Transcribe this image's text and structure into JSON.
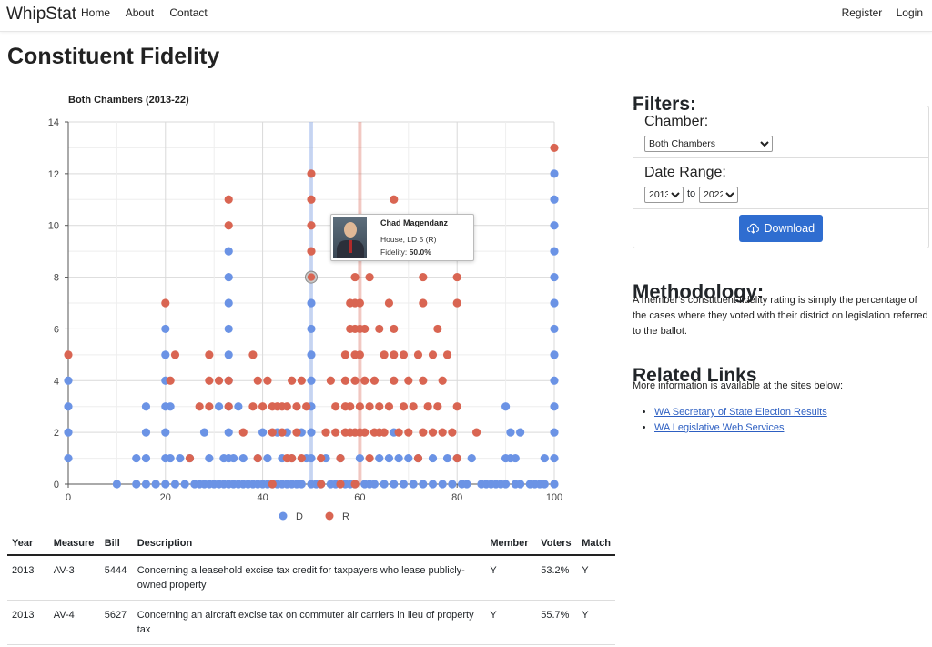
{
  "nav": {
    "brand": "WhipStat",
    "home": "Home",
    "about": "About",
    "contact": "Contact",
    "register": "Register",
    "login": "Login"
  },
  "page_title": "Constituent Fidelity",
  "tooltip": {
    "name": "Chad Magendanz",
    "district": "House, LD 5 (R)",
    "fidelity_label": "Fidelity:",
    "fidelity_value": "50.0%"
  },
  "chart_data": {
    "type": "scatter",
    "title": "Both Chambers (2013-22)",
    "xlabel": "",
    "ylabel": "",
    "xlim": [
      0,
      100
    ],
    "ylim": [
      0,
      14
    ],
    "xticks": [
      "0",
      "20",
      "40",
      "60",
      "80",
      "100"
    ],
    "yticks": [
      "0",
      "2",
      "4",
      "6",
      "8",
      "10",
      "12",
      "14"
    ],
    "grid": true,
    "legend_position": "bottom",
    "mean_lines": [
      {
        "series": "D",
        "x": 50
      },
      {
        "series": "R",
        "x": 60
      }
    ],
    "highlight": {
      "x": 50,
      "y": 8
    },
    "series": [
      {
        "name": "D",
        "color": "#6b93e5",
        "points": [
          [
            0,
            1
          ],
          [
            0,
            2
          ],
          [
            0,
            3
          ],
          [
            0,
            4
          ],
          [
            10,
            0
          ],
          [
            14,
            0
          ],
          [
            14,
            1
          ],
          [
            16,
            0
          ],
          [
            16,
            1
          ],
          [
            16,
            2
          ],
          [
            16,
            3
          ],
          [
            18,
            0
          ],
          [
            20,
            0
          ],
          [
            20,
            1
          ],
          [
            20,
            2
          ],
          [
            20,
            3
          ],
          [
            20,
            4
          ],
          [
            20,
            5
          ],
          [
            20,
            6
          ],
          [
            21,
            1
          ],
          [
            21,
            3
          ],
          [
            22,
            0
          ],
          [
            23,
            1
          ],
          [
            24,
            0
          ],
          [
            25,
            1
          ],
          [
            26,
            0
          ],
          [
            27,
            0
          ],
          [
            28,
            0
          ],
          [
            28,
            2
          ],
          [
            29,
            0
          ],
          [
            29,
            1
          ],
          [
            30,
            0
          ],
          [
            31,
            0
          ],
          [
            31,
            3
          ],
          [
            32,
            0
          ],
          [
            32,
            1
          ],
          [
            33,
            0
          ],
          [
            33,
            1
          ],
          [
            33,
            2
          ],
          [
            33,
            3
          ],
          [
            33,
            4
          ],
          [
            33,
            5
          ],
          [
            33,
            6
          ],
          [
            33,
            7
          ],
          [
            33,
            8
          ],
          [
            33,
            9
          ],
          [
            34,
            0
          ],
          [
            34,
            1
          ],
          [
            35,
            0
          ],
          [
            35,
            3
          ],
          [
            36,
            0
          ],
          [
            36,
            1
          ],
          [
            37,
            0
          ],
          [
            38,
            0
          ],
          [
            39,
            0
          ],
          [
            39,
            1
          ],
          [
            40,
            0
          ],
          [
            40,
            2
          ],
          [
            41,
            0
          ],
          [
            41,
            1
          ],
          [
            42,
            0
          ],
          [
            43,
            0
          ],
          [
            43,
            2
          ],
          [
            44,
            0
          ],
          [
            44,
            1
          ],
          [
            45,
            0
          ],
          [
            45,
            2
          ],
          [
            46,
            0
          ],
          [
            46,
            1
          ],
          [
            47,
            0
          ],
          [
            48,
            0
          ],
          [
            48,
            2
          ],
          [
            49,
            1
          ],
          [
            50,
            0
          ],
          [
            50,
            1
          ],
          [
            50,
            2
          ],
          [
            50,
            3
          ],
          [
            50,
            4
          ],
          [
            50,
            5
          ],
          [
            50,
            6
          ],
          [
            50,
            7
          ],
          [
            51,
            0
          ],
          [
            52,
            0
          ],
          [
            53,
            1
          ],
          [
            54,
            0
          ],
          [
            55,
            0
          ],
          [
            56,
            1
          ],
          [
            57,
            0
          ],
          [
            58,
            0
          ],
          [
            59,
            0
          ],
          [
            60,
            1
          ],
          [
            61,
            0
          ],
          [
            62,
            0
          ],
          [
            63,
            0
          ],
          [
            64,
            1
          ],
          [
            65,
            0
          ],
          [
            66,
            1
          ],
          [
            67,
            0
          ],
          [
            67,
            2
          ],
          [
            68,
            1
          ],
          [
            69,
            0
          ],
          [
            70,
            1
          ],
          [
            71,
            0
          ],
          [
            72,
            1
          ],
          [
            73,
            0
          ],
          [
            75,
            1
          ],
          [
            75,
            0
          ],
          [
            77,
            0
          ],
          [
            78,
            1
          ],
          [
            79,
            0
          ],
          [
            80,
            1
          ],
          [
            81,
            0
          ],
          [
            82,
            0
          ],
          [
            83,
            1
          ],
          [
            85,
            0
          ],
          [
            86,
            0
          ],
          [
            87,
            0
          ],
          [
            88,
            0
          ],
          [
            89,
            0
          ],
          [
            90,
            1
          ],
          [
            90,
            0
          ],
          [
            91,
            1
          ],
          [
            91,
            2
          ],
          [
            92,
            0
          ],
          [
            92,
            1
          ],
          [
            93,
            0
          ],
          [
            93,
            2
          ],
          [
            96,
            0
          ],
          [
            97,
            0
          ],
          [
            98,
            0
          ],
          [
            98,
            1
          ],
          [
            100,
            0
          ],
          [
            100,
            1
          ],
          [
            100,
            2
          ],
          [
            100,
            3
          ],
          [
            100,
            4
          ],
          [
            100,
            5
          ],
          [
            100,
            6
          ],
          [
            100,
            7
          ],
          [
            100,
            8
          ],
          [
            100,
            9
          ],
          [
            100,
            10
          ],
          [
            100,
            11
          ],
          [
            100,
            12
          ],
          [
            90,
            3
          ],
          [
            95,
            0
          ]
        ]
      },
      {
        "name": "R",
        "color": "#d96552",
        "points": [
          [
            0,
            5
          ],
          [
            20,
            7
          ],
          [
            21,
            4
          ],
          [
            22,
            5
          ],
          [
            25,
            1
          ],
          [
            27,
            3
          ],
          [
            29,
            4
          ],
          [
            29,
            5
          ],
          [
            31,
            4
          ],
          [
            33,
            3
          ],
          [
            33,
            4
          ],
          [
            33,
            10
          ],
          [
            33,
            11
          ],
          [
            36,
            2
          ],
          [
            38,
            3
          ],
          [
            38,
            5
          ],
          [
            39,
            4
          ],
          [
            40,
            3
          ],
          [
            41,
            4
          ],
          [
            42,
            3
          ],
          [
            42,
            2
          ],
          [
            43,
            3
          ],
          [
            44,
            2
          ],
          [
            44,
            3
          ],
          [
            45,
            1
          ],
          [
            45,
            3
          ],
          [
            46,
            4
          ],
          [
            46,
            1
          ],
          [
            47,
            2
          ],
          [
            47,
            3
          ],
          [
            48,
            1
          ],
          [
            48,
            4
          ],
          [
            49,
            3
          ],
          [
            50,
            8
          ],
          [
            50,
            9
          ],
          [
            50,
            10
          ],
          [
            50,
            11
          ],
          [
            50,
            12
          ],
          [
            52,
            1
          ],
          [
            53,
            2
          ],
          [
            54,
            4
          ],
          [
            55,
            2
          ],
          [
            55,
            3
          ],
          [
            56,
            1
          ],
          [
            57,
            2
          ],
          [
            57,
            3
          ],
          [
            57,
            4
          ],
          [
            57,
            5
          ],
          [
            58,
            2
          ],
          [
            58,
            3
          ],
          [
            58,
            6
          ],
          [
            58,
            7
          ],
          [
            59,
            2
          ],
          [
            59,
            4
          ],
          [
            59,
            5
          ],
          [
            59,
            6
          ],
          [
            59,
            7
          ],
          [
            59,
            8
          ],
          [
            60,
            2
          ],
          [
            60,
            3
          ],
          [
            60,
            5
          ],
          [
            60,
            6
          ],
          [
            60,
            7
          ],
          [
            61,
            2
          ],
          [
            61,
            4
          ],
          [
            61,
            6
          ],
          [
            62,
            1
          ],
          [
            62,
            3
          ],
          [
            62,
            8
          ],
          [
            63,
            2
          ],
          [
            63,
            4
          ],
          [
            64,
            2
          ],
          [
            64,
            3
          ],
          [
            64,
            6
          ],
          [
            65,
            2
          ],
          [
            65,
            5
          ],
          [
            66,
            3
          ],
          [
            66,
            7
          ],
          [
            67,
            4
          ],
          [
            67,
            5
          ],
          [
            67,
            6
          ],
          [
            67,
            11
          ],
          [
            68,
            2
          ],
          [
            69,
            3
          ],
          [
            69,
            5
          ],
          [
            70,
            2
          ],
          [
            70,
            4
          ],
          [
            71,
            3
          ],
          [
            72,
            5
          ],
          [
            72,
            1
          ],
          [
            73,
            2
          ],
          [
            73,
            4
          ],
          [
            73,
            7
          ],
          [
            73,
            8
          ],
          [
            74,
            3
          ],
          [
            75,
            2
          ],
          [
            75,
            5
          ],
          [
            76,
            3
          ],
          [
            76,
            6
          ],
          [
            77,
            2
          ],
          [
            77,
            4
          ],
          [
            78,
            5
          ],
          [
            79,
            2
          ],
          [
            80,
            1
          ],
          [
            80,
            3
          ],
          [
            80,
            7
          ],
          [
            80,
            8
          ],
          [
            84,
            2
          ],
          [
            100,
            13
          ],
          [
            52,
            0
          ],
          [
            56,
            0
          ],
          [
            59,
            0
          ],
          [
            42,
            0
          ],
          [
            39,
            1
          ],
          [
            29,
            3
          ]
        ]
      }
    ]
  },
  "table": {
    "headers": [
      "Year",
      "Measure",
      "Bill",
      "Description",
      "Member",
      "Voters",
      "Match"
    ],
    "rows": [
      [
        "2013",
        "AV-3",
        "5444",
        "Concerning a leasehold excise tax credit for taxpayers who lease publicly-owned property",
        "Y",
        "53.2%",
        "Y"
      ],
      [
        "2013",
        "AV-4",
        "5627",
        "Concerning an aircraft excise tax on commuter air carriers in lieu of property tax",
        "Y",
        "55.7%",
        "Y"
      ]
    ]
  },
  "filters": {
    "title": "Filters:",
    "chamber_label": "Chamber:",
    "chamber_value": "Both Chambers",
    "date_label": "Date Range:",
    "start_year": "2013",
    "to_label": "to",
    "end_year": "2022",
    "download_label": "Download"
  },
  "methodology": {
    "title": "Methodology:",
    "text": "A member's constituent fidelity rating is simply the percentage of the cases where they voted with their district on legislation referred to the ballot."
  },
  "related": {
    "title": "Related Links",
    "text": "More information is available at the sites below:",
    "links": [
      "WA Secretary of State Election Results",
      "WA Legislative Web Services"
    ]
  }
}
